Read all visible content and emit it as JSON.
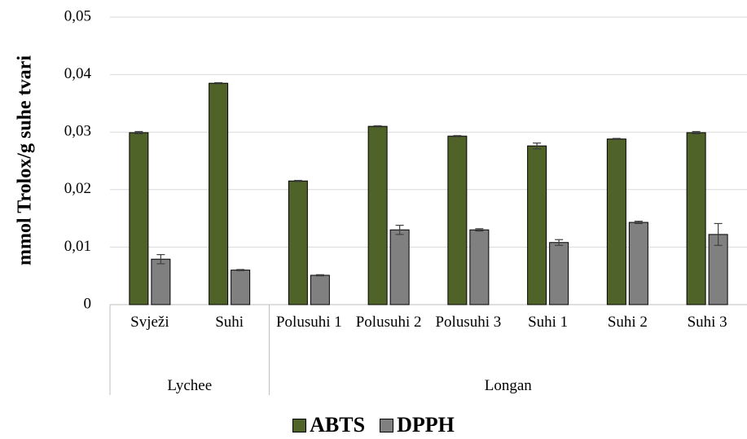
{
  "chart_data": {
    "type": "bar",
    "y_label": "mmol Trolox/g suhe tvari",
    "groups": [
      {
        "name": "Lychee",
        "categories": [
          "Svježi",
          "Suhi"
        ]
      },
      {
        "name": "Longan",
        "categories": [
          "Polusuhi 1",
          "Polusuhi 2",
          "Polusuhi 3",
          "Suhi 1",
          "Suhi 2",
          "Suhi 3"
        ]
      }
    ],
    "series": [
      {
        "name": "ABTS",
        "color": "#4f6228",
        "values": [
          0.0299,
          0.0385,
          0.0215,
          0.031,
          0.0293,
          0.0276,
          0.0288,
          0.0299
        ],
        "errors": [
          0.0002,
          0.0001,
          0.0001,
          0.0001,
          0.0001,
          0.0005,
          0.0001,
          0.0002
        ]
      },
      {
        "name": "DPPH",
        "color": "#808080",
        "values": [
          0.0079,
          0.006,
          0.0051,
          0.013,
          0.013,
          0.0108,
          0.0143,
          0.0122
        ],
        "errors": [
          0.0008,
          0.0001,
          0.0001,
          0.0008,
          0.0002,
          0.0005,
          0.0002,
          0.0019
        ]
      }
    ],
    "ylim": [
      0,
      0.05
    ],
    "yticks": [
      0,
      {
        "value": 0.01,
        "label": "0,01"
      },
      {
        "value": 0.02,
        "label": "0,02"
      },
      {
        "value": 0.03,
        "label": "0,03"
      },
      {
        "value": 0.04,
        "label": "0,04"
      },
      {
        "value": 0.05,
        "label": "0,05"
      }
    ],
    "grid": true,
    "legend": "bottom"
  }
}
